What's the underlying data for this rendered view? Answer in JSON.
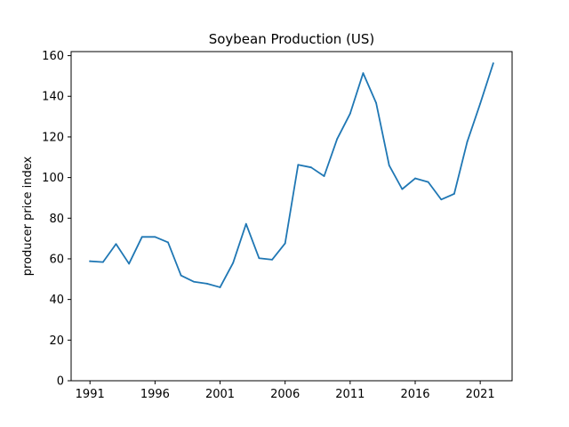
{
  "chart_data": {
    "type": "line",
    "title": "Soybean Production (US)",
    "xlabel": "",
    "ylabel": "producer price index",
    "xlim": [
      1989.55,
      2023.45
    ],
    "ylim": [
      0,
      162
    ],
    "x_ticks": [
      1991,
      1996,
      2001,
      2006,
      2011,
      2016,
      2021
    ],
    "y_ticks": [
      0,
      20,
      40,
      60,
      80,
      100,
      120,
      140,
      160
    ],
    "grid": false,
    "series": [
      {
        "color": "#1f77b4",
        "x": [
          1991,
          1992,
          1993,
          1994,
          1995,
          1996,
          1997,
          1998,
          1999,
          2000,
          2001,
          2002,
          2003,
          2004,
          2005,
          2006,
          2007,
          2008,
          2009,
          2010,
          2011,
          2012,
          2013,
          2014,
          2015,
          2016,
          2017,
          2018,
          2019,
          2020,
          2021,
          2022
        ],
        "values": [
          58.8,
          58.4,
          67.3,
          57.6,
          70.8,
          70.8,
          68.1,
          51.8,
          48.7,
          47.8,
          46.0,
          58.0,
          77.2,
          60.3,
          59.6,
          67.6,
          106.3,
          105.0,
          100.7,
          119.0,
          131.5,
          151.4,
          136.7,
          106.0,
          94.3,
          99.6,
          97.8,
          89.2,
          92.0,
          117.6,
          136.4,
          156.2
        ]
      }
    ]
  }
}
